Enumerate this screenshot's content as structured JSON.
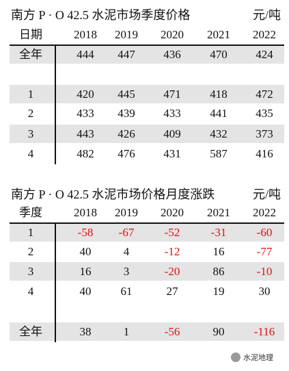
{
  "tables": [
    {
      "title": "南方 P · O 42.5 水泥市场季度价格",
      "unit": "元/吨",
      "header": [
        "日期",
        "2018",
        "2019",
        "2020",
        "2021",
        "2022"
      ],
      "rows": [
        {
          "label": "全年",
          "values": [
            444,
            447,
            436,
            470,
            424
          ]
        },
        {
          "label": "1",
          "values": [
            420,
            445,
            471,
            418,
            472
          ]
        },
        {
          "label": "2",
          "values": [
            433,
            439,
            433,
            441,
            435
          ]
        },
        {
          "label": "3",
          "values": [
            443,
            426,
            409,
            432,
            373
          ]
        },
        {
          "label": "4",
          "values": [
            482,
            476,
            431,
            587,
            416
          ]
        }
      ]
    },
    {
      "title": "南方 P · O 42.5 水泥市场价格月度涨跌",
      "unit": "元/吨",
      "header": [
        "季度",
        "2018",
        "2019",
        "2020",
        "2021",
        "2022"
      ],
      "rows": [
        {
          "label": "1",
          "values": [
            -58,
            -67,
            -52,
            -31,
            -60
          ]
        },
        {
          "label": "2",
          "values": [
            40,
            4,
            -12,
            16,
            -77
          ]
        },
        {
          "label": "3",
          "values": [
            16,
            3,
            -20,
            86,
            -10
          ]
        },
        {
          "label": "4",
          "values": [
            40,
            61,
            27,
            19,
            30
          ]
        },
        {
          "label": "全年",
          "values": [
            38,
            1,
            -56,
            90,
            -116
          ]
        }
      ]
    }
  ],
  "watermark": "水泥地理"
}
